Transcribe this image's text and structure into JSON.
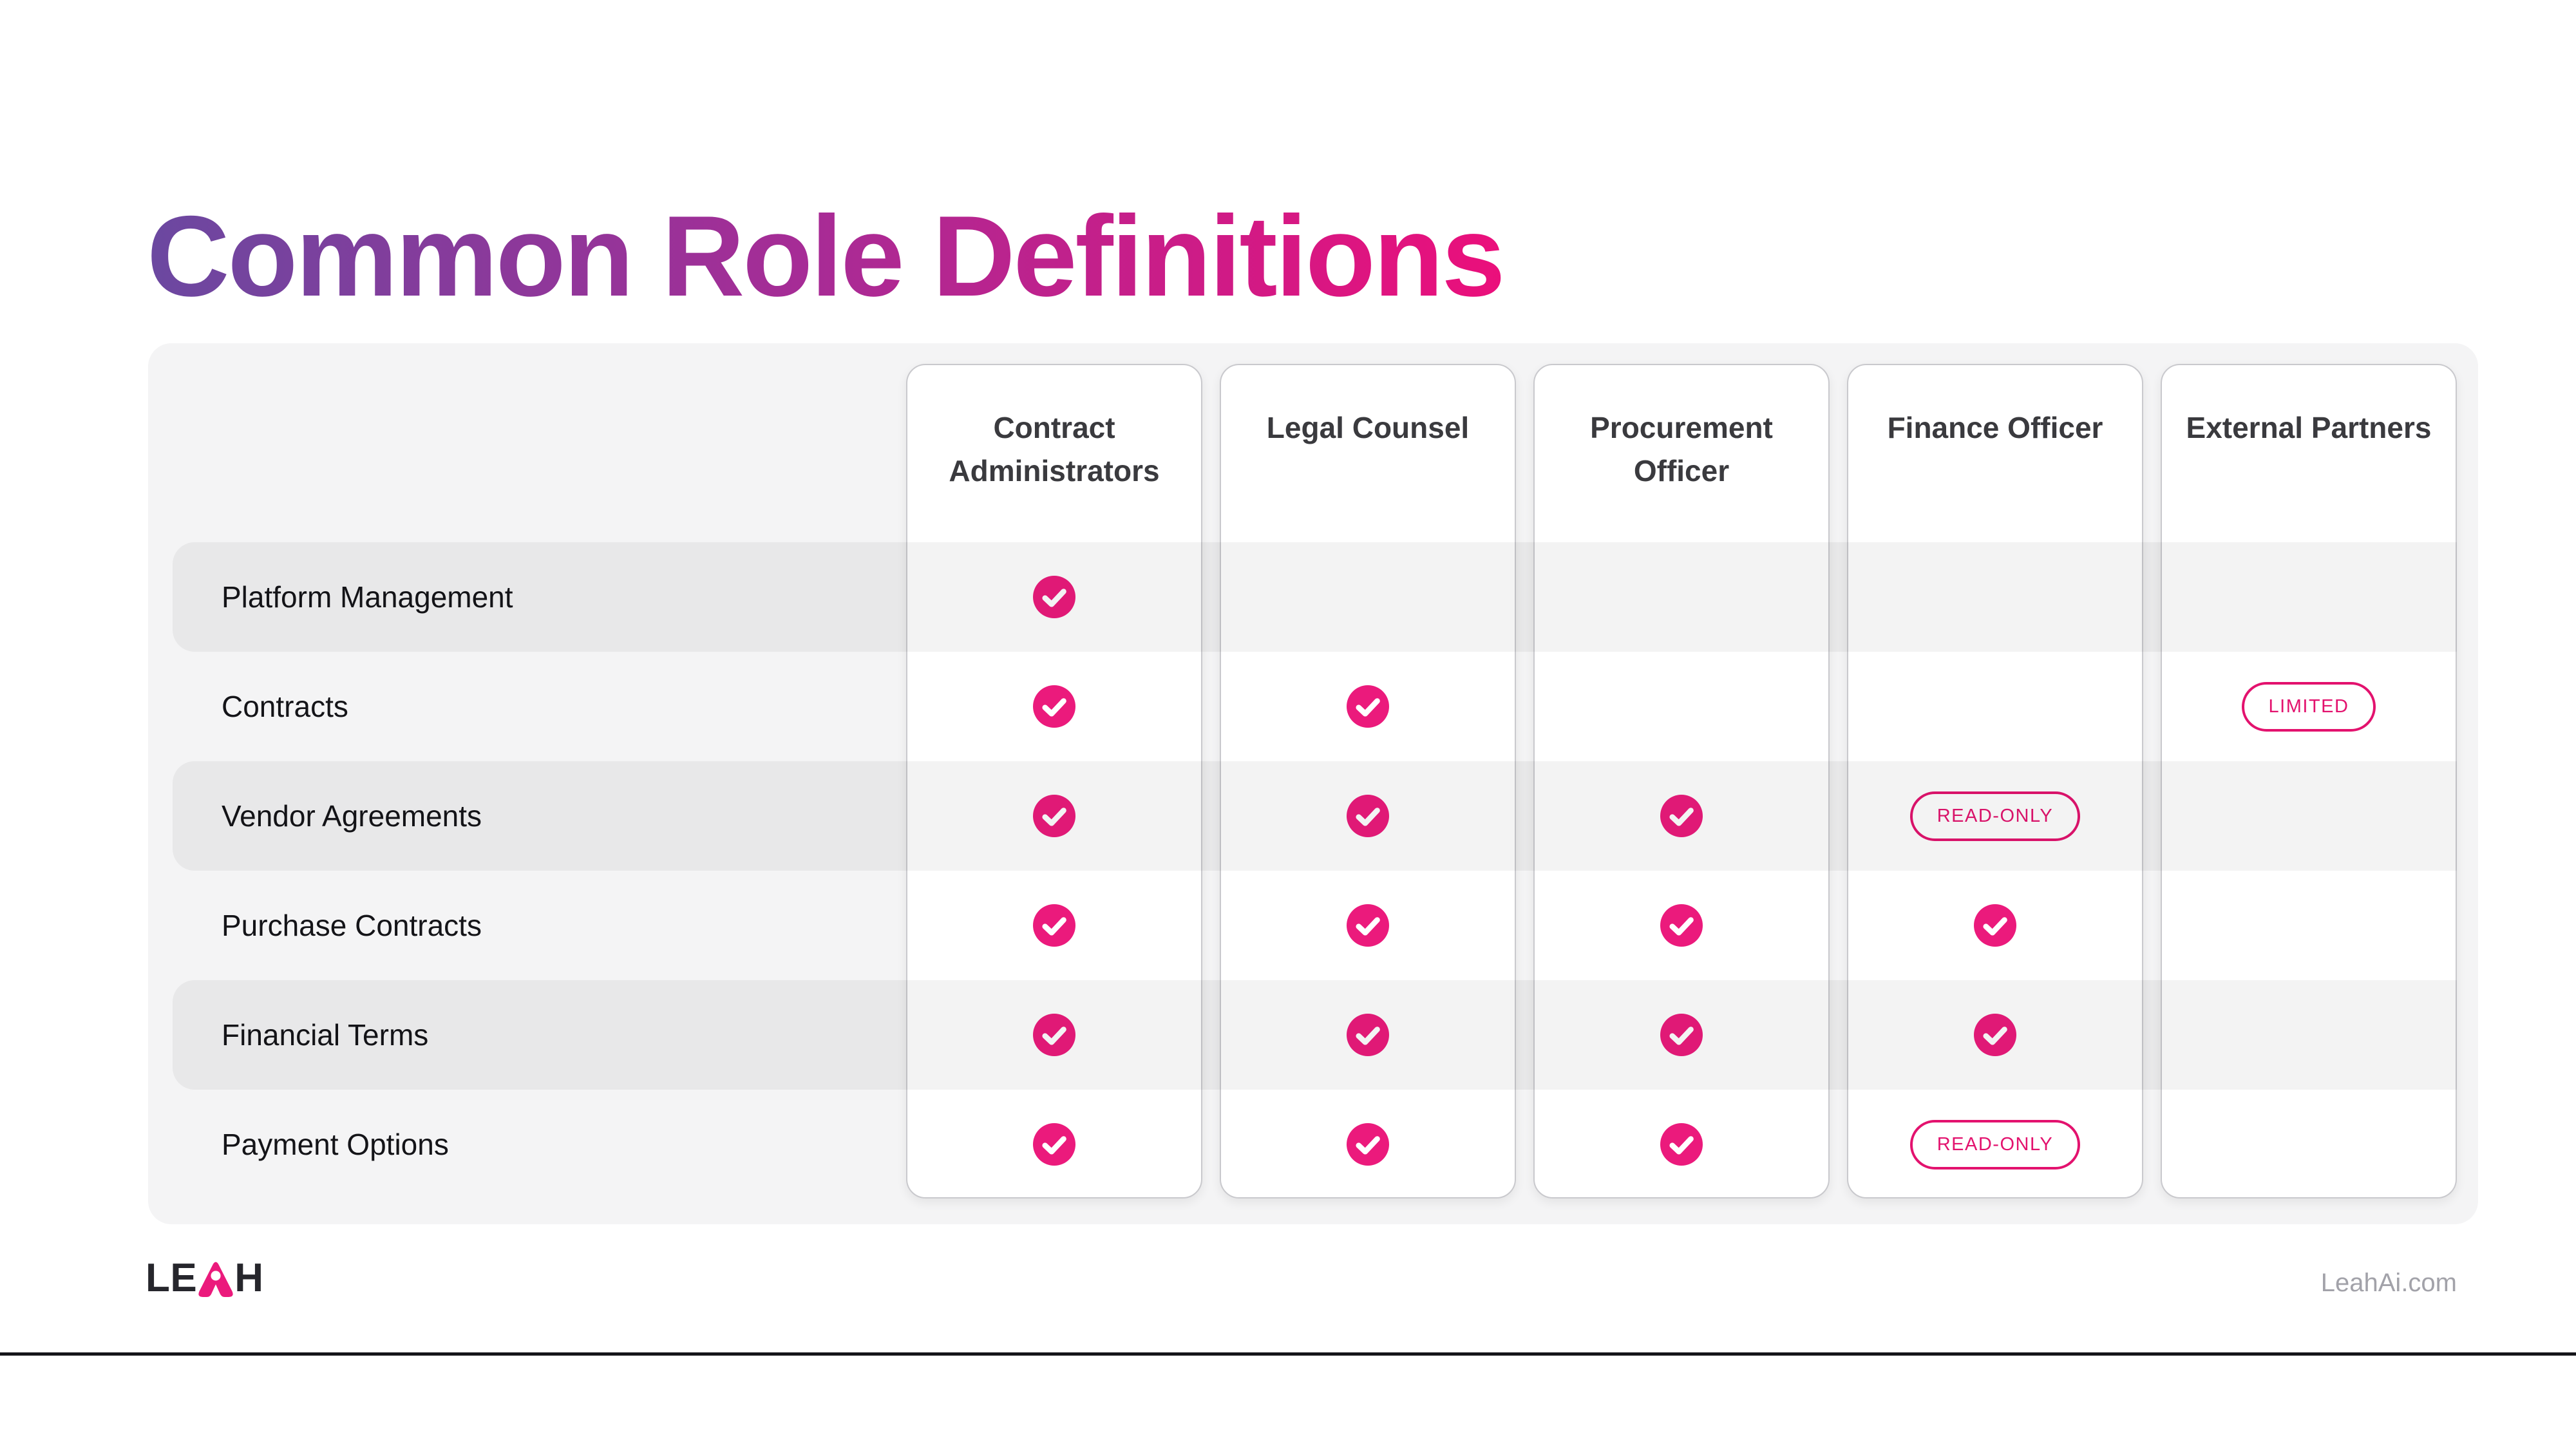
{
  "slide": {
    "title": "Common Role Definitions"
  },
  "table": {
    "columns": [
      "Contract Administrators",
      "Legal Counsel",
      "Procurement Officer",
      "Finance Officer",
      "External Partners"
    ],
    "rows": [
      {
        "label": "Platform Management",
        "cells": [
          "check",
          "",
          "",
          "",
          ""
        ]
      },
      {
        "label": "Contracts",
        "cells": [
          "check",
          "check",
          "",
          "",
          "limited"
        ]
      },
      {
        "label": "Vendor Agreements",
        "cells": [
          "check",
          "check",
          "check",
          "readonly",
          ""
        ]
      },
      {
        "label": "Purchase Contracts",
        "cells": [
          "check",
          "check",
          "check",
          "check",
          ""
        ]
      },
      {
        "label": "Financial Terms",
        "cells": [
          "check",
          "check",
          "check",
          "check",
          ""
        ]
      },
      {
        "label": "Payment Options",
        "cells": [
          "check",
          "check",
          "check",
          "readonly",
          ""
        ]
      }
    ],
    "badge_labels": {
      "limited": "LIMITED",
      "readonly": "READ-ONLY"
    },
    "cell_icon": {
      "check": "check-icon"
    }
  },
  "footer": {
    "logo_prefix": "LE",
    "logo_accent_letter": "A",
    "logo_suffix": "H",
    "website": "LeahAi.com"
  },
  "colors": {
    "title_gradient_start": "#6B48A0",
    "title_gradient_mid": "#A62C96",
    "title_gradient_end": "#EB0F7B",
    "check": "#EB1A7C",
    "badge": "#E3126E",
    "logo_dark": "#26262C",
    "panel_bg": "#F4F4F5",
    "stripe": "rgba(10,10,15,0.05)"
  }
}
